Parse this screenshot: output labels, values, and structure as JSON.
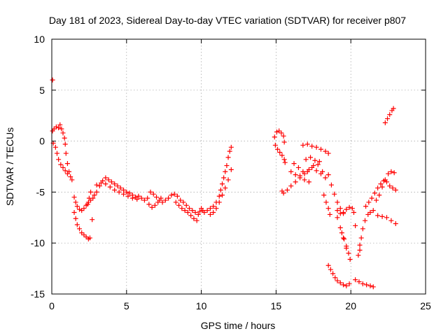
{
  "chart_data": {
    "type": "scatter",
    "title": "Day 181 of 2023, Sidereal Day-to-day VTEC variation (SDTVAR) for receiver p807",
    "xlabel": "GPS time / hours",
    "ylabel": "SDTVAR / TECUs",
    "xlim": [
      0,
      25
    ],
    "ylim": [
      -15,
      10
    ],
    "xticks": [
      0,
      5,
      10,
      15,
      20,
      25
    ],
    "yticks": [
      -15,
      -10,
      -5,
      0,
      5,
      10
    ],
    "grid": true,
    "marker": "plus",
    "color": "#ff0000",
    "series": [
      {
        "points": [
          [
            0.05,
            6.0
          ],
          [
            0.05,
            1.0
          ],
          [
            0.15,
            1.2
          ],
          [
            0.3,
            1.4
          ],
          [
            0.45,
            1.3
          ],
          [
            0.55,
            1.6
          ],
          [
            0.65,
            1.2
          ],
          [
            0.75,
            0.8
          ],
          [
            0.85,
            0.3
          ],
          [
            0.9,
            -0.3
          ],
          [
            0.95,
            -1.2
          ],
          [
            1.05,
            -2.2
          ],
          [
            1.15,
            -3.0
          ],
          [
            1.25,
            -3.5
          ],
          [
            1.35,
            -3.8
          ],
          [
            0.1,
            -0.2
          ],
          [
            0.25,
            -0.6
          ],
          [
            0.35,
            -1.2
          ],
          [
            0.45,
            -1.8
          ],
          [
            0.6,
            -2.3
          ],
          [
            0.75,
            -2.6
          ],
          [
            0.9,
            -2.9
          ],
          [
            1.05,
            -3.2
          ],
          [
            1.5,
            -5.5
          ],
          [
            1.6,
            -6.0
          ],
          [
            1.7,
            -6.4
          ],
          [
            1.85,
            -6.7
          ],
          [
            2.0,
            -6.8
          ],
          [
            2.15,
            -6.6
          ],
          [
            2.3,
            -6.3
          ],
          [
            2.45,
            -6.0
          ],
          [
            2.6,
            -5.8
          ],
          [
            2.75,
            -5.6
          ],
          [
            2.85,
            -5.3
          ],
          [
            1.5,
            -7.0
          ],
          [
            1.6,
            -7.6
          ],
          [
            1.7,
            -8.2
          ],
          [
            1.85,
            -8.6
          ],
          [
            2.0,
            -9.0
          ],
          [
            2.15,
            -9.2
          ],
          [
            2.3,
            -9.4
          ],
          [
            2.45,
            -9.6
          ],
          [
            2.55,
            -9.5
          ],
          [
            2.4,
            -6.2
          ],
          [
            2.5,
            -5.6
          ],
          [
            2.6,
            -5.0
          ],
          [
            2.7,
            -7.7
          ],
          [
            3.0,
            -5.0
          ],
          [
            3.2,
            -4.4
          ],
          [
            3.4,
            -3.9
          ],
          [
            3.6,
            -3.6
          ],
          [
            3.8,
            -3.8
          ],
          [
            4.0,
            -4.0
          ],
          [
            4.2,
            -4.2
          ],
          [
            4.4,
            -4.4
          ],
          [
            4.6,
            -4.6
          ],
          [
            4.8,
            -4.8
          ],
          [
            5.0,
            -5.0
          ],
          [
            5.2,
            -5.1
          ],
          [
            5.4,
            -5.3
          ],
          [
            5.6,
            -5.5
          ],
          [
            3.0,
            -4.3
          ],
          [
            3.3,
            -4.1
          ],
          [
            3.6,
            -4.2
          ],
          [
            3.9,
            -4.5
          ],
          [
            4.2,
            -4.8
          ],
          [
            4.5,
            -5.0
          ],
          [
            4.8,
            -5.2
          ],
          [
            5.1,
            -5.4
          ],
          [
            5.4,
            -5.6
          ],
          [
            5.7,
            -5.7
          ],
          [
            5.8,
            -5.4
          ],
          [
            6.0,
            -5.6
          ],
          [
            6.2,
            -5.8
          ],
          [
            6.4,
            -5.6
          ],
          [
            6.6,
            -5.0
          ],
          [
            6.8,
            -5.2
          ],
          [
            7.0,
            -5.5
          ],
          [
            7.2,
            -5.8
          ],
          [
            7.4,
            -6.0
          ],
          [
            7.6,
            -5.8
          ],
          [
            6.5,
            -6.2
          ],
          [
            6.7,
            -6.5
          ],
          [
            6.9,
            -6.3
          ],
          [
            7.1,
            -6.0
          ],
          [
            7.3,
            -5.6
          ],
          [
            7.8,
            -5.6
          ],
          [
            8.0,
            -5.3
          ],
          [
            8.2,
            -5.2
          ],
          [
            8.4,
            -5.4
          ],
          [
            8.6,
            -5.8
          ],
          [
            8.8,
            -6.0
          ],
          [
            9.0,
            -6.3
          ],
          [
            9.2,
            -6.6
          ],
          [
            9.4,
            -6.8
          ],
          [
            9.6,
            -7.0
          ],
          [
            9.8,
            -7.2
          ],
          [
            8.3,
            -6.0
          ],
          [
            8.5,
            -6.3
          ],
          [
            8.7,
            -6.6
          ],
          [
            8.9,
            -6.8
          ],
          [
            9.1,
            -7.0
          ],
          [
            9.3,
            -7.3
          ],
          [
            9.5,
            -7.6
          ],
          [
            9.7,
            -7.8
          ],
          [
            9.9,
            -6.9
          ],
          [
            10.0,
            -6.6
          ],
          [
            10.1,
            -6.8
          ],
          [
            10.2,
            -7.0
          ],
          [
            10.4,
            -6.8
          ],
          [
            10.6,
            -6.6
          ],
          [
            10.8,
            -6.4
          ],
          [
            11.0,
            -6.0
          ],
          [
            11.2,
            -5.4
          ],
          [
            11.3,
            -4.8
          ],
          [
            11.4,
            -4.2
          ],
          [
            11.5,
            -3.6
          ],
          [
            11.6,
            -3.0
          ],
          [
            11.7,
            -2.4
          ],
          [
            11.8,
            -1.6
          ],
          [
            11.9,
            -1.0
          ],
          [
            12.0,
            -0.6
          ],
          [
            10.6,
            -7.2
          ],
          [
            10.8,
            -7.0
          ],
          [
            11.0,
            -6.6
          ],
          [
            11.2,
            -6.0
          ],
          [
            11.4,
            -5.3
          ],
          [
            11.6,
            -4.6
          ],
          [
            11.8,
            -3.8
          ],
          [
            12.0,
            -2.8
          ],
          [
            14.9,
            0.4
          ],
          [
            15.05,
            0.9
          ],
          [
            15.2,
            1.0
          ],
          [
            15.35,
            0.8
          ],
          [
            15.5,
            0.5
          ],
          [
            15.55,
            -0.1
          ],
          [
            14.95,
            -0.4
          ],
          [
            15.1,
            -0.8
          ],
          [
            15.25,
            -1.1
          ],
          [
            15.4,
            -1.4
          ],
          [
            15.55,
            -1.8
          ],
          [
            15.6,
            -2.1
          ],
          [
            15.4,
            -4.9
          ],
          [
            15.5,
            -5.1
          ],
          [
            15.75,
            -4.8
          ],
          [
            16.0,
            -4.4
          ],
          [
            16.3,
            -4.0
          ],
          [
            16.6,
            -3.6
          ],
          [
            16.9,
            -3.2
          ],
          [
            17.2,
            -2.8
          ],
          [
            17.5,
            -2.4
          ],
          [
            17.8,
            -2.3
          ],
          [
            16.0,
            -3.0
          ],
          [
            16.3,
            -3.3
          ],
          [
            16.6,
            -3.4
          ],
          [
            16.9,
            -3.8
          ],
          [
            17.2,
            -4.0
          ],
          [
            16.2,
            -2.2
          ],
          [
            16.5,
            -2.6
          ],
          [
            16.8,
            -3.0
          ],
          [
            17.1,
            -3.0
          ],
          [
            17.4,
            -2.6
          ],
          [
            17.7,
            -2.9
          ],
          [
            18.0,
            -3.2
          ],
          [
            18.3,
            -3.6
          ],
          [
            16.8,
            -0.4
          ],
          [
            17.1,
            -0.3
          ],
          [
            17.4,
            -0.5
          ],
          [
            17.7,
            -0.6
          ],
          [
            18.0,
            -0.8
          ],
          [
            18.3,
            -1.0
          ],
          [
            18.5,
            -1.2
          ],
          [
            17.0,
            -1.8
          ],
          [
            17.3,
            -1.6
          ],
          [
            17.6,
            -1.9
          ],
          [
            17.9,
            -2.0
          ],
          [
            18.1,
            -3.0
          ],
          [
            18.2,
            -5.3
          ],
          [
            18.35,
            -6.0
          ],
          [
            18.5,
            -6.6
          ],
          [
            18.6,
            -7.2
          ],
          [
            18.5,
            -3.3
          ],
          [
            18.7,
            -4.3
          ],
          [
            18.9,
            -5.2
          ],
          [
            19.1,
            -6.0
          ],
          [
            19.3,
            -6.6
          ],
          [
            19.5,
            -7.1
          ],
          [
            19.4,
            -9.0
          ],
          [
            19.55,
            -9.6
          ],
          [
            19.7,
            -10.3
          ],
          [
            19.85,
            -11.0
          ],
          [
            19.95,
            -11.6
          ],
          [
            19.1,
            -7.5
          ],
          [
            19.3,
            -8.5
          ],
          [
            19.5,
            -9.5
          ],
          [
            19.7,
            -10.5
          ],
          [
            18.5,
            -12.2
          ],
          [
            18.65,
            -12.6
          ],
          [
            18.8,
            -13.0
          ],
          [
            18.95,
            -13.4
          ],
          [
            19.1,
            -13.7
          ],
          [
            19.3,
            -13.9
          ],
          [
            19.5,
            -14.1
          ],
          [
            19.7,
            -14.2
          ],
          [
            19.9,
            -14.0
          ],
          [
            19.1,
            -6.8
          ],
          [
            19.3,
            -7.1
          ],
          [
            19.5,
            -7.0
          ],
          [
            19.7,
            -6.7
          ],
          [
            19.9,
            -6.5
          ],
          [
            20.1,
            -6.6
          ],
          [
            20.2,
            -7.0
          ],
          [
            20.3,
            -8.3
          ],
          [
            20.3,
            -13.6
          ],
          [
            20.55,
            -13.8
          ],
          [
            20.8,
            -14.0
          ],
          [
            21.05,
            -14.1
          ],
          [
            21.3,
            -14.2
          ],
          [
            21.5,
            -14.3
          ],
          [
            20.6,
            -10.2
          ],
          [
            20.7,
            -9.5
          ],
          [
            20.8,
            -8.6
          ],
          [
            20.95,
            -7.8
          ],
          [
            21.15,
            -7.2
          ],
          [
            21.3,
            -7.0
          ],
          [
            21.5,
            -6.8
          ],
          [
            20.5,
            -11.2
          ],
          [
            20.6,
            -10.7
          ],
          [
            21.0,
            -6.4
          ],
          [
            21.2,
            -6.0
          ],
          [
            21.4,
            -5.6
          ],
          [
            21.6,
            -5.1
          ],
          [
            21.8,
            -4.6
          ],
          [
            22.0,
            -4.2
          ],
          [
            22.2,
            -3.9
          ],
          [
            22.4,
            -4.0
          ],
          [
            22.6,
            -4.4
          ],
          [
            22.8,
            -4.6
          ],
          [
            23.0,
            -4.8
          ],
          [
            21.8,
            -7.3
          ],
          [
            22.1,
            -7.4
          ],
          [
            22.4,
            -7.5
          ],
          [
            22.7,
            -7.8
          ],
          [
            23.0,
            -8.1
          ],
          [
            21.7,
            -5.8
          ],
          [
            21.9,
            -5.3
          ],
          [
            22.1,
            -4.5
          ],
          [
            22.3,
            -3.8
          ],
          [
            22.5,
            -3.2
          ],
          [
            22.7,
            -3.0
          ],
          [
            22.9,
            -3.1
          ],
          [
            22.3,
            1.8
          ],
          [
            22.45,
            2.2
          ],
          [
            22.6,
            2.6
          ],
          [
            22.75,
            3.0
          ],
          [
            22.85,
            3.2
          ]
        ]
      }
    ]
  }
}
